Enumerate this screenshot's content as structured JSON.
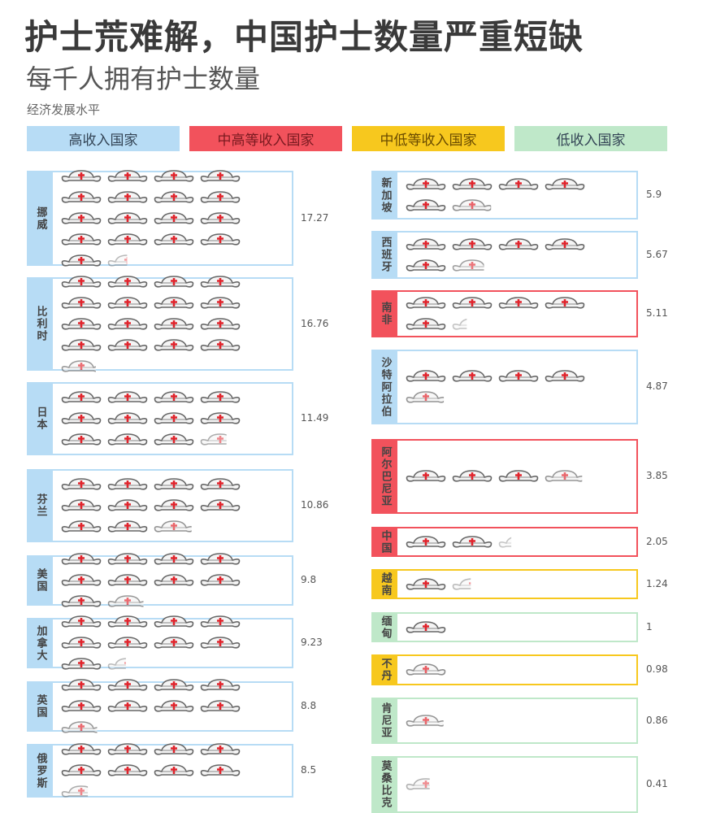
{
  "title": "护士荒难解，中国护士数量严重短缺",
  "subtitle": "每千人拥有护士数量",
  "legend_title": "经济发展水平",
  "colors": {
    "high": "#b7dcf5",
    "upper_middle": "#f2525c",
    "lower_middle": "#f7c81e",
    "low": "#bfe8c9"
  },
  "legend": [
    {
      "key": "high",
      "label": "高收入国家"
    },
    {
      "key": "upper_middle",
      "label": "中高等收入国家"
    },
    {
      "key": "lower_middle",
      "label": "中低等收入国家"
    },
    {
      "key": "low",
      "label": "低收入国家"
    }
  ],
  "chart_data": {
    "type": "pictogram",
    "unit_icon": "nurse-cap-icon",
    "unit": "每个图标=1名护士/千人",
    "countries": [
      {
        "name": "挪威",
        "value": 17.27,
        "level": "high"
      },
      {
        "name": "比利时",
        "value": 16.76,
        "level": "high"
      },
      {
        "name": "日本",
        "value": 11.49,
        "level": "high"
      },
      {
        "name": "芬兰",
        "value": 10.86,
        "level": "high"
      },
      {
        "name": "美国",
        "value": 9.8,
        "level": "high"
      },
      {
        "name": "加拿大",
        "value": 9.23,
        "level": "high"
      },
      {
        "name": "英国",
        "value": 8.8,
        "level": "high"
      },
      {
        "name": "俄罗斯",
        "value": 8.5,
        "level": "high"
      },
      {
        "name": "新加坡",
        "value": 5.9,
        "level": "high"
      },
      {
        "name": "西班牙",
        "value": 5.67,
        "level": "high"
      },
      {
        "name": "南非",
        "value": 5.11,
        "level": "upper_middle"
      },
      {
        "name": "沙特阿拉伯",
        "value": 4.87,
        "level": "high"
      },
      {
        "name": "阿尔巴尼亚",
        "value": 3.85,
        "level": "upper_middle"
      },
      {
        "name": "中国",
        "value": 2.05,
        "level": "upper_middle"
      },
      {
        "name": "越南",
        "value": 1.24,
        "level": "lower_middle"
      },
      {
        "name": "缅甸",
        "value": 1,
        "level": "low"
      },
      {
        "name": "不丹",
        "value": 0.98,
        "level": "lower_middle"
      },
      {
        "name": "肯尼亚",
        "value": 0.86,
        "level": "low"
      },
      {
        "name": "莫桑比克",
        "value": 0.41,
        "level": "low"
      }
    ]
  }
}
